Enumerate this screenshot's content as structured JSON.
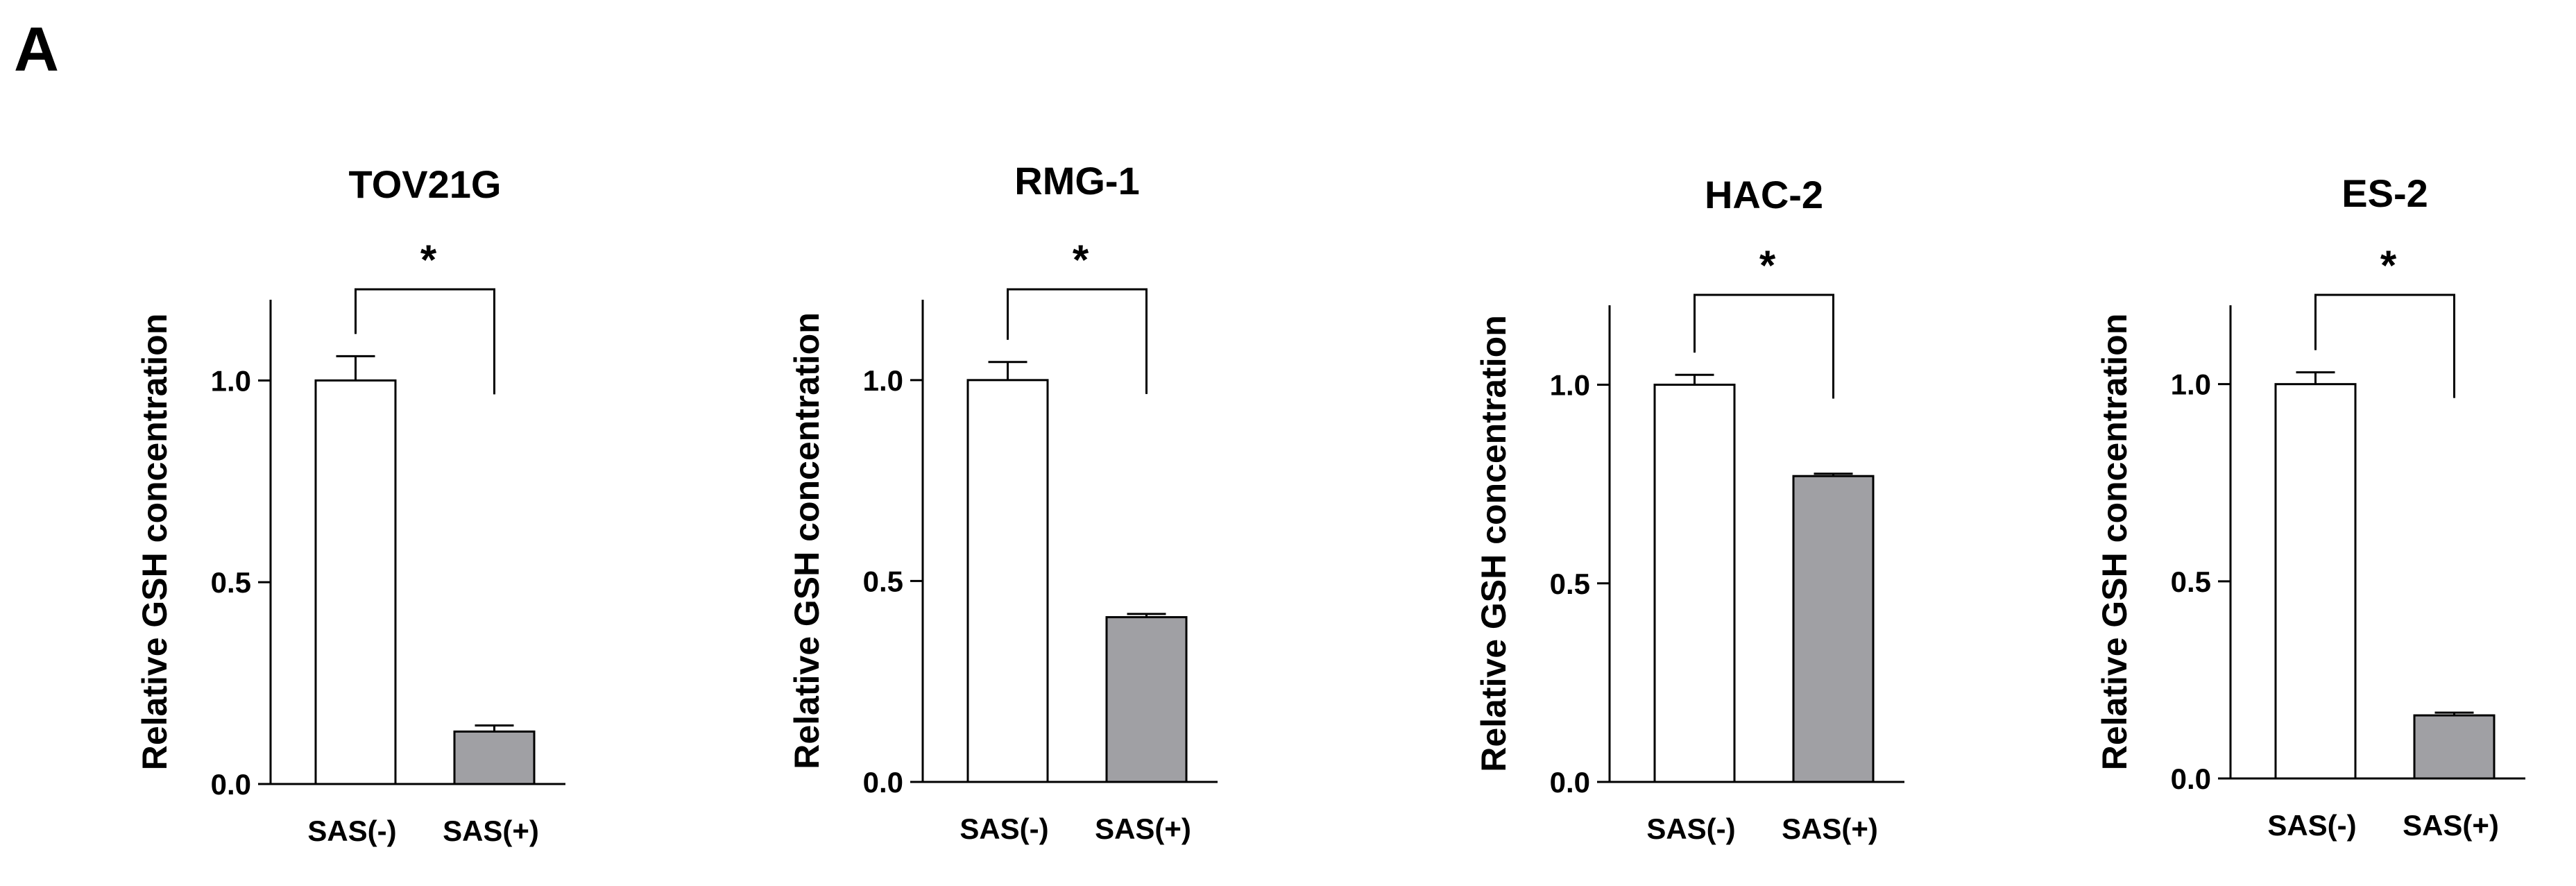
{
  "figure": {
    "panel_label": "A"
  },
  "chart_data": [
    {
      "type": "bar",
      "title": "TOV21G",
      "ylabel": "Relative GSH concentration",
      "xlabel": "",
      "categories": [
        "SAS(-)",
        "SAS(+)"
      ],
      "values": [
        1.0,
        0.13
      ],
      "errors": [
        0.06,
        0.015
      ],
      "bar_colors": [
        "#ffffff",
        "#a0a0a4"
      ],
      "ylim": [
        0,
        1.2
      ],
      "yticks": [
        0.0,
        0.5,
        1.0
      ],
      "ytick_labels": [
        "0.0",
        "0.5",
        "1.0"
      ],
      "significance": {
        "label": "*",
        "pair": [
          0,
          1
        ]
      }
    },
    {
      "type": "bar",
      "title": "RMG-1",
      "ylabel": "Relative GSH concentration",
      "xlabel": "",
      "categories": [
        "SAS(-)",
        "SAS(+)"
      ],
      "values": [
        1.0,
        0.41
      ],
      "errors": [
        0.045,
        0.008
      ],
      "bar_colors": [
        "#ffffff",
        "#a0a0a4"
      ],
      "ylim": [
        0,
        1.2
      ],
      "yticks": [
        0.0,
        0.5,
        1.0
      ],
      "ytick_labels": [
        "0.0",
        "0.5",
        "1.0"
      ],
      "significance": {
        "label": "*",
        "pair": [
          0,
          1
        ]
      }
    },
    {
      "type": "bar",
      "title": "HAC-2",
      "ylabel": "Relative GSH concentration",
      "xlabel": "",
      "categories": [
        "SAS(-)",
        "SAS(+)"
      ],
      "values": [
        1.0,
        0.77
      ],
      "errors": [
        0.025,
        0.006
      ],
      "bar_colors": [
        "#ffffff",
        "#a0a0a4"
      ],
      "ylim": [
        0,
        1.2
      ],
      "yticks": [
        0.0,
        0.5,
        1.0
      ],
      "ytick_labels": [
        "0.0",
        "0.5",
        "1.0"
      ],
      "significance": {
        "label": "*",
        "pair": [
          0,
          1
        ]
      }
    },
    {
      "type": "bar",
      "title": "ES-2",
      "ylabel": "Relative GSH concentration",
      "xlabel": "",
      "categories": [
        "SAS(-)",
        "SAS(+)"
      ],
      "values": [
        1.0,
        0.16
      ],
      "errors": [
        0.03,
        0.007
      ],
      "bar_colors": [
        "#ffffff",
        "#a0a0a4"
      ],
      "ylim": [
        0,
        1.2
      ],
      "yticks": [
        0.0,
        0.5,
        1.0
      ],
      "ytick_labels": [
        "0.0",
        "0.5",
        "1.0"
      ],
      "significance": {
        "label": "*",
        "pair": [
          0,
          1
        ]
      }
    }
  ]
}
